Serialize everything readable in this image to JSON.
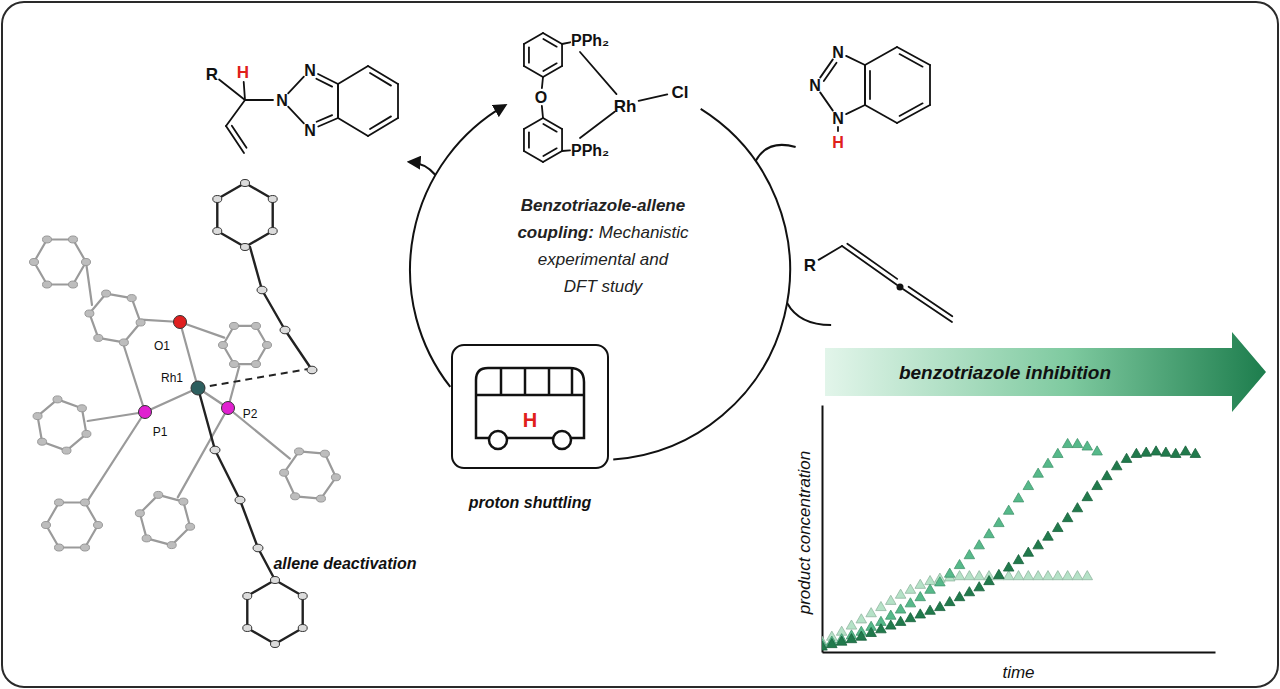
{
  "chart_data": {
    "type": "scatter",
    "title": "benzotriazole inhibition",
    "x_label": "time",
    "y_label": "product concentration",
    "xlim": [
      0,
      100
    ],
    "ylim": [
      0,
      100
    ],
    "xticks": [],
    "yticks": [],
    "tick_labels": false,
    "grid": false,
    "marker": "triangle",
    "series": [
      {
        "color": "#b5e2c7",
        "x": [
          0,
          2.5,
          5,
          7.5,
          10,
          12.5,
          15,
          17.5,
          20,
          22.5,
          25,
          27.5,
          30,
          32.5,
          35,
          37.5,
          40,
          42.5,
          45,
          47.5,
          50,
          52.5,
          55,
          57.5,
          60,
          62.5,
          65,
          67.5
        ],
        "values": [
          4,
          6,
          8,
          10.5,
          13,
          15.5,
          18,
          20.5,
          23,
          25,
          27,
          28.5,
          29.5,
          30,
          30.5,
          30.5,
          30.5,
          30.5,
          30.5,
          30.5,
          30.5,
          30.5,
          30.5,
          30.5,
          30.5,
          30.5,
          30.5,
          30.5
        ]
      },
      {
        "color": "#56b98a",
        "x": [
          0,
          2.5,
          5,
          7.5,
          10,
          12.5,
          15,
          17.5,
          20,
          22.5,
          25,
          27.5,
          30,
          32.5,
          35,
          37.5,
          40,
          42.5,
          45,
          47.5,
          50,
          52.5,
          55,
          57.5,
          60,
          62.5,
          65,
          67.5,
          70
        ],
        "values": [
          3,
          4,
          5,
          6.5,
          8,
          10,
          12,
          14.5,
          17,
          19.5,
          22,
          25,
          28,
          31.5,
          35,
          39,
          43,
          47.5,
          52,
          57,
          62,
          67,
          72,
          76,
          80,
          84,
          84,
          83,
          81
        ]
      },
      {
        "color": "#217a4c",
        "x": [
          0,
          2.5,
          5,
          7.5,
          10,
          12.5,
          15,
          17.5,
          20,
          22.5,
          25,
          27.5,
          30,
          32.5,
          35,
          37.5,
          40,
          42.5,
          45,
          47.5,
          50,
          52.5,
          55,
          57.5,
          60,
          62.5,
          65,
          67.5,
          70,
          72.5,
          75,
          77.5,
          80,
          82.5,
          85,
          87.5,
          90,
          92.5,
          95
        ],
        "values": [
          2,
          3,
          4,
          5,
          6,
          7.5,
          9,
          10.5,
          12,
          13.5,
          15,
          16.5,
          18,
          20,
          22,
          24,
          26,
          28.5,
          31,
          34,
          37,
          40,
          43,
          46.5,
          50,
          54,
          58,
          62.5,
          67,
          71,
          75,
          78,
          80,
          80.5,
          81,
          80.5,
          80,
          81,
          80
        ]
      }
    ]
  },
  "diagram": {
    "cycle_label": [
      [
        {
          "text": "Benzotriazole-allene",
          "bold": true
        }
      ],
      [
        {
          "text": "coupling:",
          "bold": true
        },
        {
          "text": "Mechanistic",
          "bold": false
        }
      ],
      [
        {
          "text": "experimental and",
          "bold": false
        }
      ],
      [
        {
          "text": "DFT study",
          "bold": false
        }
      ]
    ],
    "proton_shuttling": "proton shuttling",
    "allene_deactivation": "allene deactivation",
    "bus_h": "H",
    "product": {
      "r": "R",
      "h": "H",
      "n_top": "N",
      "n_mid": "N",
      "n_bottom": "N"
    },
    "catalyst": {
      "p_top": "PPh₂",
      "p_bottom": "PPh₂",
      "o": "O",
      "rh": "Rh",
      "cl": "Cl"
    },
    "benzotriazole": {
      "n_top": "N",
      "n_mid": "N",
      "n_bottom": "N",
      "h": "H"
    },
    "allene": {
      "r": "R"
    },
    "crystal_structure": {
      "o1": "O1",
      "rh1": "Rh1",
      "p1": "P1",
      "p2": "P2"
    }
  }
}
